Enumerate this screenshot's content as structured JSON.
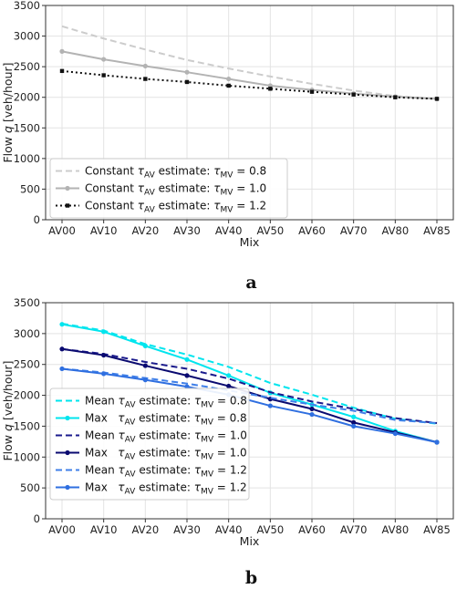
{
  "figure": {
    "label_a": "a",
    "label_b": "b"
  },
  "chart_data": [
    {
      "type": "line",
      "panel": "a",
      "xlabel": "Mix",
      "ylabel_prefix": "Flow ",
      "ylabel_var": "q",
      "ylabel_suffix": " [veh/hour]",
      "ylim": [
        0,
        3500
      ],
      "yticks": [
        0,
        500,
        1000,
        1500,
        2000,
        2500,
        3000,
        3500
      ],
      "grid": true,
      "legend_position": "lower-left",
      "categories": [
        "AV00",
        "AV10",
        "AV20",
        "AV30",
        "AV40",
        "AV50",
        "AV60",
        "AV70",
        "AV80",
        "AV85"
      ],
      "series": [
        {
          "prefix": "Constant ",
          "tau1": "τ",
          "sub1": "AV",
          "mid": " estimate: ",
          "tau2": "τ",
          "sub2": "MV",
          "eq": " = 0.8",
          "color": "#cccccc",
          "dash": "7,4",
          "marker": "none",
          "width": 2,
          "values": [
            3160,
            2960,
            2780,
            2610,
            2470,
            2340,
            2220,
            2110,
            2020,
            1975
          ]
        },
        {
          "prefix": "Constant ",
          "tau1": "τ",
          "sub1": "AV",
          "mid": " estimate: ",
          "tau2": "τ",
          "sub2": "MV",
          "eq": " = 1.0",
          "color": "#b3b3b3",
          "dash": "",
          "marker": "circle",
          "width": 2,
          "values": [
            2750,
            2620,
            2510,
            2410,
            2300,
            2190,
            2120,
            2060,
            2010,
            1975
          ]
        },
        {
          "prefix": "Constant ",
          "tau1": "τ",
          "sub1": "AV",
          "mid": " estimate: ",
          "tau2": "τ",
          "sub2": "MV",
          "eq": " = 1.2",
          "color": "#111111",
          "dash": "2,3",
          "marker": "square",
          "width": 2,
          "values": [
            2430,
            2360,
            2300,
            2250,
            2190,
            2140,
            2090,
            2045,
            2000,
            1975
          ]
        }
      ]
    },
    {
      "type": "line",
      "panel": "b",
      "xlabel": "Mix",
      "ylabel_prefix": "Flow ",
      "ylabel_var": "q",
      "ylabel_suffix": " [veh/hour]",
      "ylim": [
        0,
        3500
      ],
      "yticks": [
        0,
        500,
        1000,
        1500,
        2000,
        2500,
        3000,
        3500
      ],
      "grid": true,
      "legend_position": "lower-left",
      "categories": [
        "AV00",
        "AV10",
        "AV20",
        "AV30",
        "AV40",
        "AV50",
        "AV60",
        "AV70",
        "AV80",
        "AV85"
      ],
      "series": [
        {
          "prefix": "Mean ",
          "tau1": "τ",
          "sub1": "AV",
          "mid": " estimate: ",
          "tau2": "τ",
          "sub2": "MV",
          "eq": " = 0.8",
          "color": "#00e5ee",
          "dash": "7,4",
          "marker": "none",
          "width": 2,
          "values": [
            3160,
            3050,
            2830,
            2660,
            2460,
            2200,
            2010,
            1800,
            1620,
            1540
          ]
        },
        {
          "prefix": "Max   ",
          "tau1": "τ",
          "sub1": "AV",
          "mid": " estimate: ",
          "tau2": "τ",
          "sub2": "MV",
          "eq": " = 0.8",
          "color": "#00e5ee",
          "dash": "",
          "marker": "circle",
          "width": 2,
          "values": [
            3150,
            3030,
            2800,
            2580,
            2320,
            2040,
            1850,
            1650,
            1420,
            1240
          ]
        },
        {
          "prefix": "Mean ",
          "tau1": "τ",
          "sub1": "AV",
          "mid": " estimate: ",
          "tau2": "τ",
          "sub2": "MV",
          "eq": " = 1.0",
          "color": "#1a1a8c",
          "dash": "7,4",
          "marker": "none",
          "width": 2,
          "values": [
            2750,
            2670,
            2540,
            2430,
            2270,
            2050,
            1900,
            1780,
            1630,
            1550
          ]
        },
        {
          "prefix": "Max   ",
          "tau1": "τ",
          "sub1": "AV",
          "mid": " estimate: ",
          "tau2": "τ",
          "sub2": "MV",
          "eq": " = 1.0",
          "color": "#0a0a70",
          "dash": "",
          "marker": "circle",
          "width": 2,
          "values": [
            2750,
            2650,
            2480,
            2320,
            2150,
            1940,
            1780,
            1560,
            1400,
            1240
          ]
        },
        {
          "prefix": "Mean ",
          "tau1": "τ",
          "sub1": "AV",
          "mid": " estimate: ",
          "tau2": "τ",
          "sub2": "MV",
          "eq": " = 1.2",
          "color": "#3f7fe8",
          "dash": "7,4",
          "marker": "none",
          "width": 2,
          "values": [
            2430,
            2370,
            2280,
            2190,
            2080,
            1960,
            1850,
            1750,
            1600,
            1550
          ]
        },
        {
          "prefix": "Max   ",
          "tau1": "τ",
          "sub1": "AV",
          "mid": " estimate: ",
          "tau2": "τ",
          "sub2": "MV",
          "eq": " = 1.2",
          "color": "#2f6fe0",
          "dash": "",
          "marker": "circle",
          "width": 2,
          "values": [
            2430,
            2350,
            2250,
            2140,
            2010,
            1830,
            1690,
            1500,
            1380,
            1240
          ]
        }
      ]
    }
  ]
}
